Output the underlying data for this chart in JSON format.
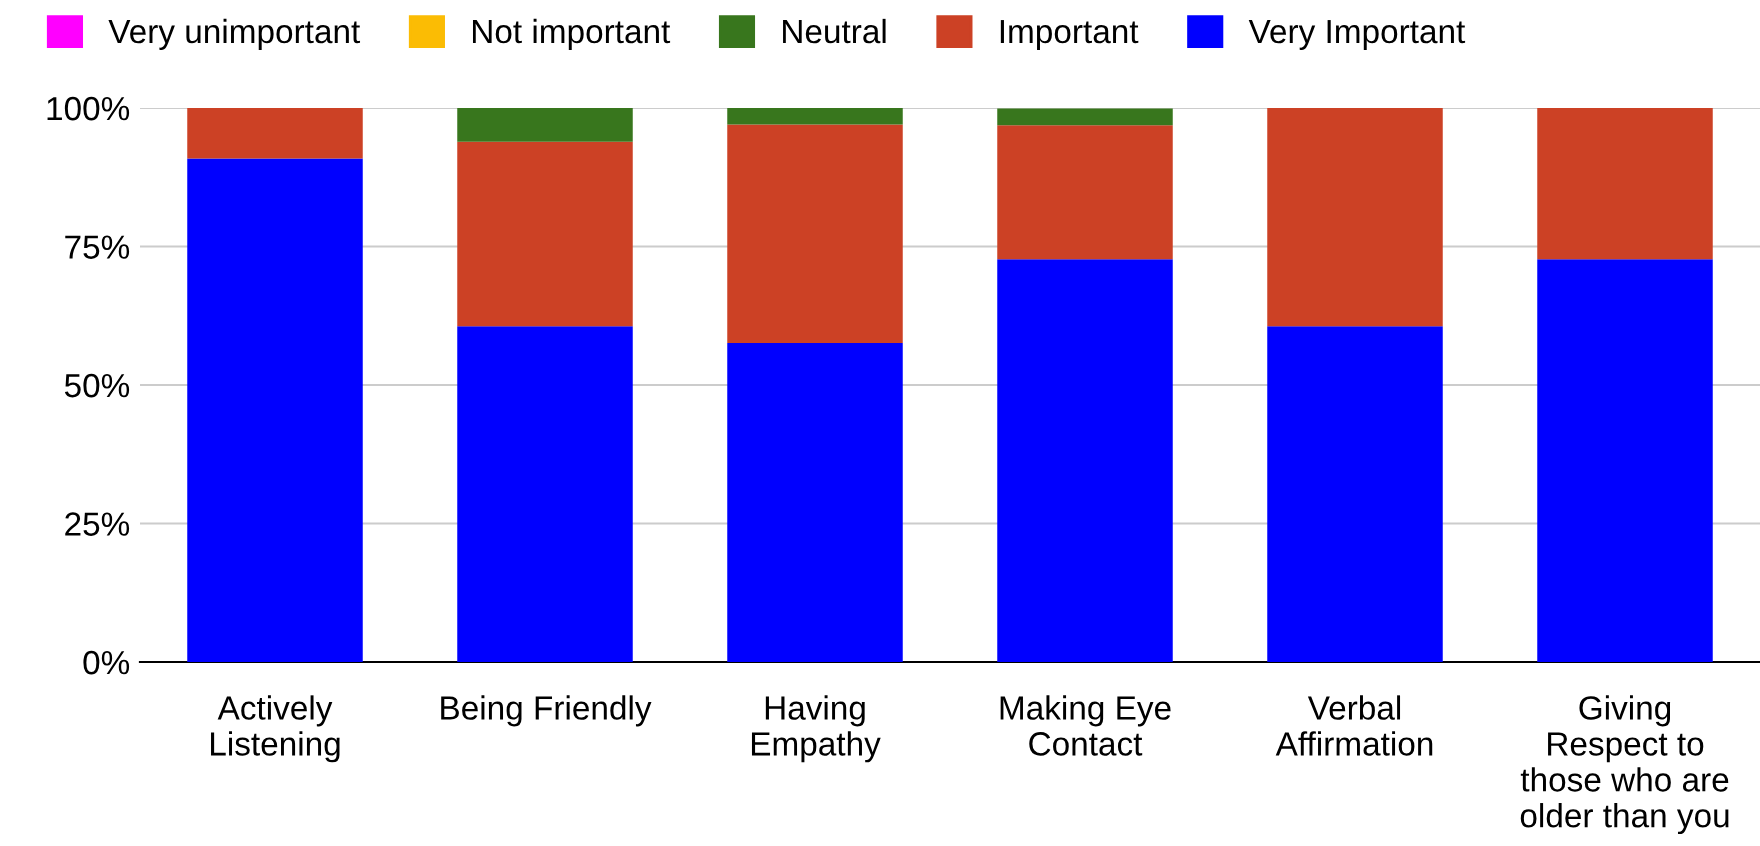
{
  "chart_data": {
    "type": "bar",
    "stacked": true,
    "categories": [
      "Actively\nListening",
      "Being Friendly",
      "Having\nEmpathy",
      "Making Eye\nContact",
      "Verbal\nAffirmation",
      "Giving\nRespect to\nthose who are\nolder than you"
    ],
    "series": [
      {
        "name": "Very Important",
        "color": "#0000ff",
        "values": [
          90.9,
          60.6,
          57.6,
          72.7,
          60.6,
          72.7
        ]
      },
      {
        "name": "Important",
        "color": "#cc4125",
        "values": [
          9.1,
          33.3,
          39.4,
          24.2,
          39.4,
          27.3
        ]
      },
      {
        "name": "Neutral",
        "color": "#38761d",
        "values": [
          0,
          6.1,
          3.0,
          3.0,
          0,
          0
        ]
      },
      {
        "name": "Not important",
        "color": "#fbbc04",
        "values": [
          0,
          0,
          0,
          0,
          0,
          0
        ]
      },
      {
        "name": "Very unimportant",
        "color": "#ff00ff",
        "values": [
          0,
          0,
          0,
          0,
          0,
          0
        ]
      }
    ],
    "ylim": [
      0,
      100
    ],
    "yticks": [
      {
        "value": 0,
        "label": "0%"
      },
      {
        "value": 25,
        "label": "25%"
      },
      {
        "value": 50,
        "label": "50%"
      },
      {
        "value": 75,
        "label": "75%"
      },
      {
        "value": 100,
        "label": "100%"
      }
    ],
    "grid": "y",
    "legend": "top"
  }
}
